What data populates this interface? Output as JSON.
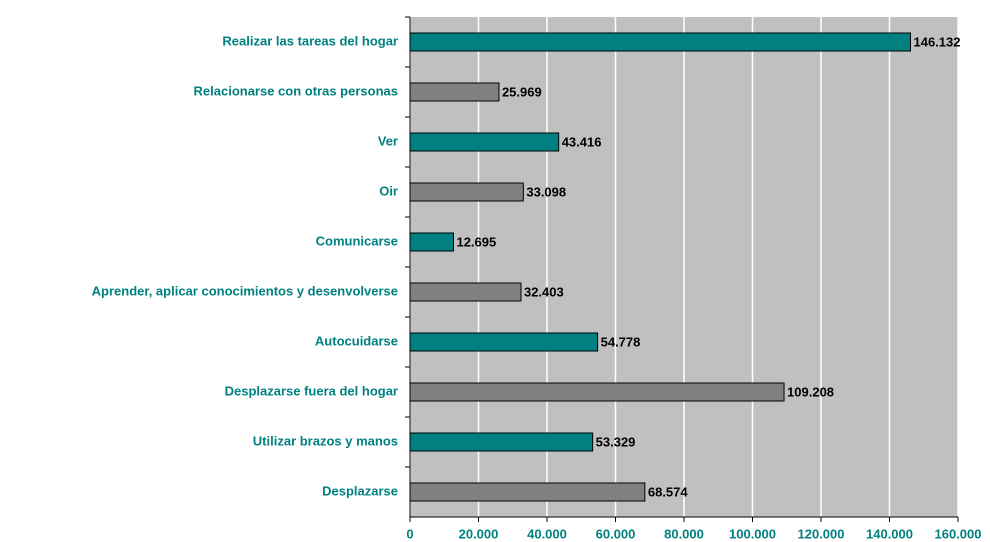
{
  "chart_data": {
    "type": "hbar",
    "categories": [
      "Realizar las tareas del hogar",
      "Relacionarse con otras personas",
      "Ver",
      "Oir",
      "Comunicarse",
      "Aprender, aplicar conocimientos y desenvolverse",
      "Autocuidarse",
      "Desplazarse fuera del hogar",
      "Utilizar brazos y manos",
      "Desplazarse"
    ],
    "values": [
      146132,
      25969,
      43416,
      33098,
      12695,
      32403,
      54778,
      109208,
      53329,
      68574
    ],
    "value_labels": [
      "146.132",
      "25.969",
      "43.416",
      "33.098",
      "12.695",
      "32.403",
      "54.778",
      "109.208",
      "53.329",
      "68.574"
    ],
    "colors": [
      "#008080",
      "#808080",
      "#008080",
      "#808080",
      "#008080",
      "#808080",
      "#008080",
      "#808080",
      "#008080",
      "#808080"
    ],
    "xlim": [
      0,
      160000
    ],
    "xticks": [
      0,
      {
        "value": 20000,
        "label": "20.000"
      },
      {
        "value": 40000,
        "label": "40.000"
      },
      {
        "value": 60000,
        "label": "60.000"
      },
      {
        "value": 80000,
        "label": "80.000"
      },
      {
        "value": 100000,
        "label": "100.000"
      },
      {
        "value": 120000,
        "label": "120.000"
      },
      {
        "value": 140000,
        "label": "140.000"
      },
      {
        "value": 160000,
        "label": "160.000"
      }
    ],
    "grid": true
  }
}
